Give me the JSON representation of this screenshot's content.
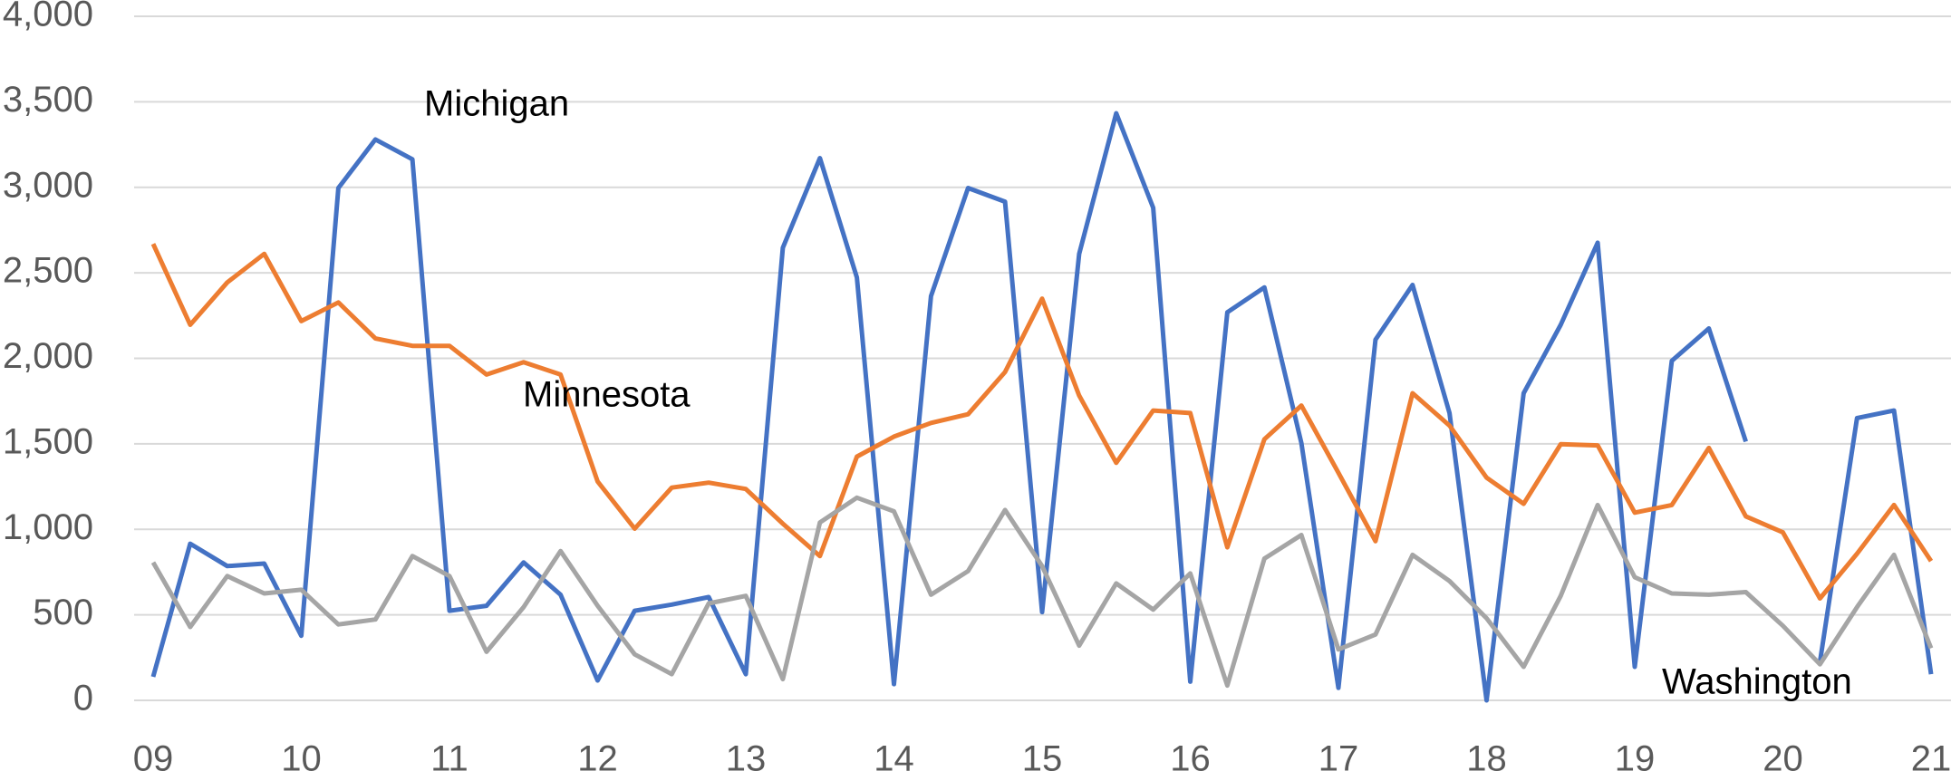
{
  "chart_data": {
    "type": "line",
    "x": [
      2009,
      2009.25,
      2009.5,
      2009.75,
      2010,
      2010.25,
      2010.5,
      2010.75,
      2011,
      2011.25,
      2011.5,
      2011.75,
      2012,
      2012.25,
      2012.5,
      2012.75,
      2013,
      2013.25,
      2013.5,
      2013.75,
      2014,
      2014.25,
      2014.5,
      2014.75,
      2015,
      2015.25,
      2015.5,
      2015.75,
      2016,
      2016.25,
      2016.5,
      2016.75,
      2017,
      2017.25,
      2017.5,
      2017.75,
      2018,
      2018.25,
      2018.5,
      2018.75,
      2019,
      2019.25,
      2019.5,
      2019.75,
      2020,
      2020.25,
      2020.5,
      2020.75,
      2021
    ],
    "series": [
      {
        "name": "Michigan",
        "color": "#4472c4",
        "values": [
          138,
          916,
          785,
          800,
          378,
          2996,
          3280,
          3164,
          524,
          553,
          807,
          618,
          116,
          524,
          560,
          604,
          153,
          2647,
          3171,
          2473,
          95,
          2364,
          2996,
          2916,
          516,
          2611,
          3433,
          2880,
          109,
          2269,
          2415,
          1505,
          73,
          2109,
          2429,
          1680,
          0,
          1796,
          2196,
          2676,
          196,
          1985,
          2175,
          1513,
          null,
          225,
          1651,
          1695,
          153
        ]
      },
      {
        "name": "Minnesota",
        "color": "#ed7d31",
        "values": [
          2669,
          2196,
          2444,
          2611,
          2218,
          2327,
          2116,
          2073,
          2073,
          1905,
          1978,
          1905,
          1280,
          1004,
          1244,
          1273,
          1236,
          1033,
          844,
          1425,
          1542,
          1622,
          1673,
          1920,
          2349,
          1782,
          1389,
          1695,
          1680,
          895,
          1527,
          1724,
          1331,
          931,
          1796,
          1607,
          1302,
          1149,
          1498,
          1491,
          1098,
          1142,
          1476,
          1076,
          982,
          596,
          858,
          1142,
          815
        ]
      },
      {
        "name": "Washington",
        "color": "#a5a5a5",
        "values": [
          807,
          429,
          727,
          625,
          647,
          444,
          473,
          844,
          727,
          284,
          545,
          873,
          553,
          269,
          153,
          567,
          611,
          124,
          1040,
          1185,
          1105,
          618,
          756,
          1113,
          785,
          320,
          684,
          531,
          742,
          87,
          829,
          967,
          298,
          385,
          851,
          698,
          480,
          196,
          611,
          1142,
          720,
          625,
          618,
          633,
          436,
          211,
          545,
          851,
          305
        ]
      }
    ],
    "xlim": [
      2009,
      2021
    ],
    "xticks": [
      {
        "value": 2009,
        "label": "09"
      },
      {
        "value": 2010,
        "label": "10"
      },
      {
        "value": 2011,
        "label": "11"
      },
      {
        "value": 2012,
        "label": "12"
      },
      {
        "value": 2013,
        "label": "13"
      },
      {
        "value": 2014,
        "label": "14"
      },
      {
        "value": 2015,
        "label": "15"
      },
      {
        "value": 2016,
        "label": "16"
      },
      {
        "value": 2017,
        "label": "17"
      },
      {
        "value": 2018,
        "label": "18"
      },
      {
        "value": 2019,
        "label": "19"
      },
      {
        "value": 2020,
        "label": "20"
      },
      {
        "value": 2021,
        "label": "21"
      }
    ],
    "ylim": [
      0,
      4000
    ],
    "yticks": [
      0,
      500,
      {
        "value": 1000,
        "label": "1,000"
      },
      {
        "value": 1500,
        "label": "1,500"
      },
      {
        "value": 2000,
        "label": "2,000"
      },
      {
        "value": 2500,
        "label": "2,500"
      },
      {
        "value": 3000,
        "label": "3,000"
      },
      {
        "value": 3500,
        "label": "3,500"
      },
      {
        "value": 4000,
        "label": "4,000"
      }
    ],
    "grid": true
  }
}
